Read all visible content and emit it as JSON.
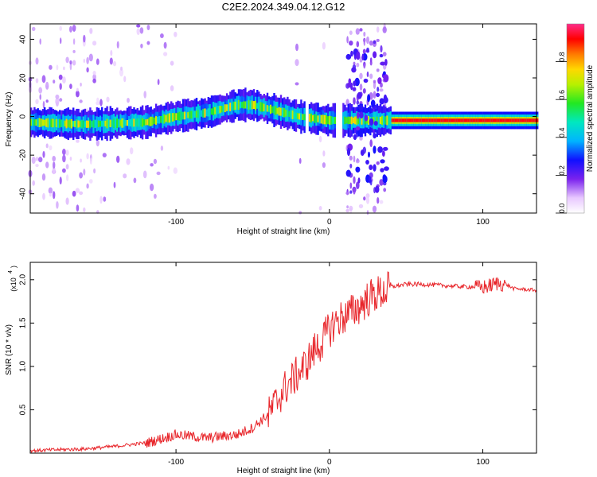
{
  "figure_title": "C2E2.2024.349.04.12.G12",
  "chart_data": [
    {
      "type": "heatmap",
      "title": "C2E2.2024.349.04.12.G12",
      "xlabel": "Height of straight line (km)",
      "ylabel": "Frequency (Hz)",
      "xlim": [
        -195,
        135
      ],
      "ylim": [
        -50,
        48
      ],
      "xticks": [
        -100,
        0,
        100
      ],
      "yticks": [
        -40,
        -20,
        0,
        20,
        40
      ],
      "colorbar": {
        "label": "Normalized spectral amplitude",
        "range": [
          0,
          1
        ],
        "ticks": [
          0.0,
          0.2,
          0.4,
          0.6,
          0.8
        ],
        "colormap": "rainbow (white-violet-blue-cyan-green-yellow-orange-red-magenta)"
      },
      "doppler_trace": {
        "x": [
          -195,
          -160,
          -120,
          -100,
          -80,
          -60,
          -50,
          -40,
          -30,
          -20,
          -10,
          0,
          10,
          40,
          80,
          100,
          135
        ],
        "frequency": [
          -3,
          -4,
          -3,
          0,
          2,
          6,
          6,
          4,
          2,
          0,
          -1,
          -2,
          -2,
          -2,
          -2,
          -2,
          -2
        ]
      },
      "colors": {
        "low": "#8a2be2",
        "mid": "#00c8ff",
        "high": "#ff0000"
      }
    },
    {
      "type": "line",
      "xlabel": "Height of straight line (km)",
      "ylabel": "SNR (10 * v/v)",
      "scale_label": "(x10",
      "scale_exponent": "4",
      "xlim": [
        -195,
        135
      ],
      "ylim": [
        0,
        2.2
      ],
      "xticks": [
        -100,
        0,
        100
      ],
      "yticks": [
        0.5,
        1.0,
        1.5,
        2.0
      ],
      "grid": false,
      "series": [
        {
          "color": "#e8262b",
          "x": [
            -195,
            -180,
            -160,
            -140,
            -120,
            -110,
            -100,
            -90,
            -80,
            -70,
            -60,
            -50,
            -40,
            -35,
            -30,
            -25,
            -20,
            -15,
            -10,
            -5,
            0,
            5,
            10,
            15,
            20,
            25,
            30,
            35,
            40,
            50,
            60,
            70,
            80,
            90,
            100,
            105,
            110,
            115,
            120,
            135
          ],
          "values": [
            0.03,
            0.04,
            0.05,
            0.08,
            0.12,
            0.17,
            0.22,
            0.2,
            0.18,
            0.2,
            0.22,
            0.3,
            0.45,
            0.6,
            0.75,
            0.85,
            0.95,
            1.05,
            1.2,
            1.3,
            1.45,
            1.55,
            1.6,
            1.65,
            1.72,
            1.8,
            1.85,
            1.88,
            1.92,
            1.95,
            1.95,
            1.94,
            1.93,
            1.92,
            1.92,
            1.94,
            1.97,
            1.95,
            1.9,
            1.88
          ]
        }
      ]
    }
  ]
}
